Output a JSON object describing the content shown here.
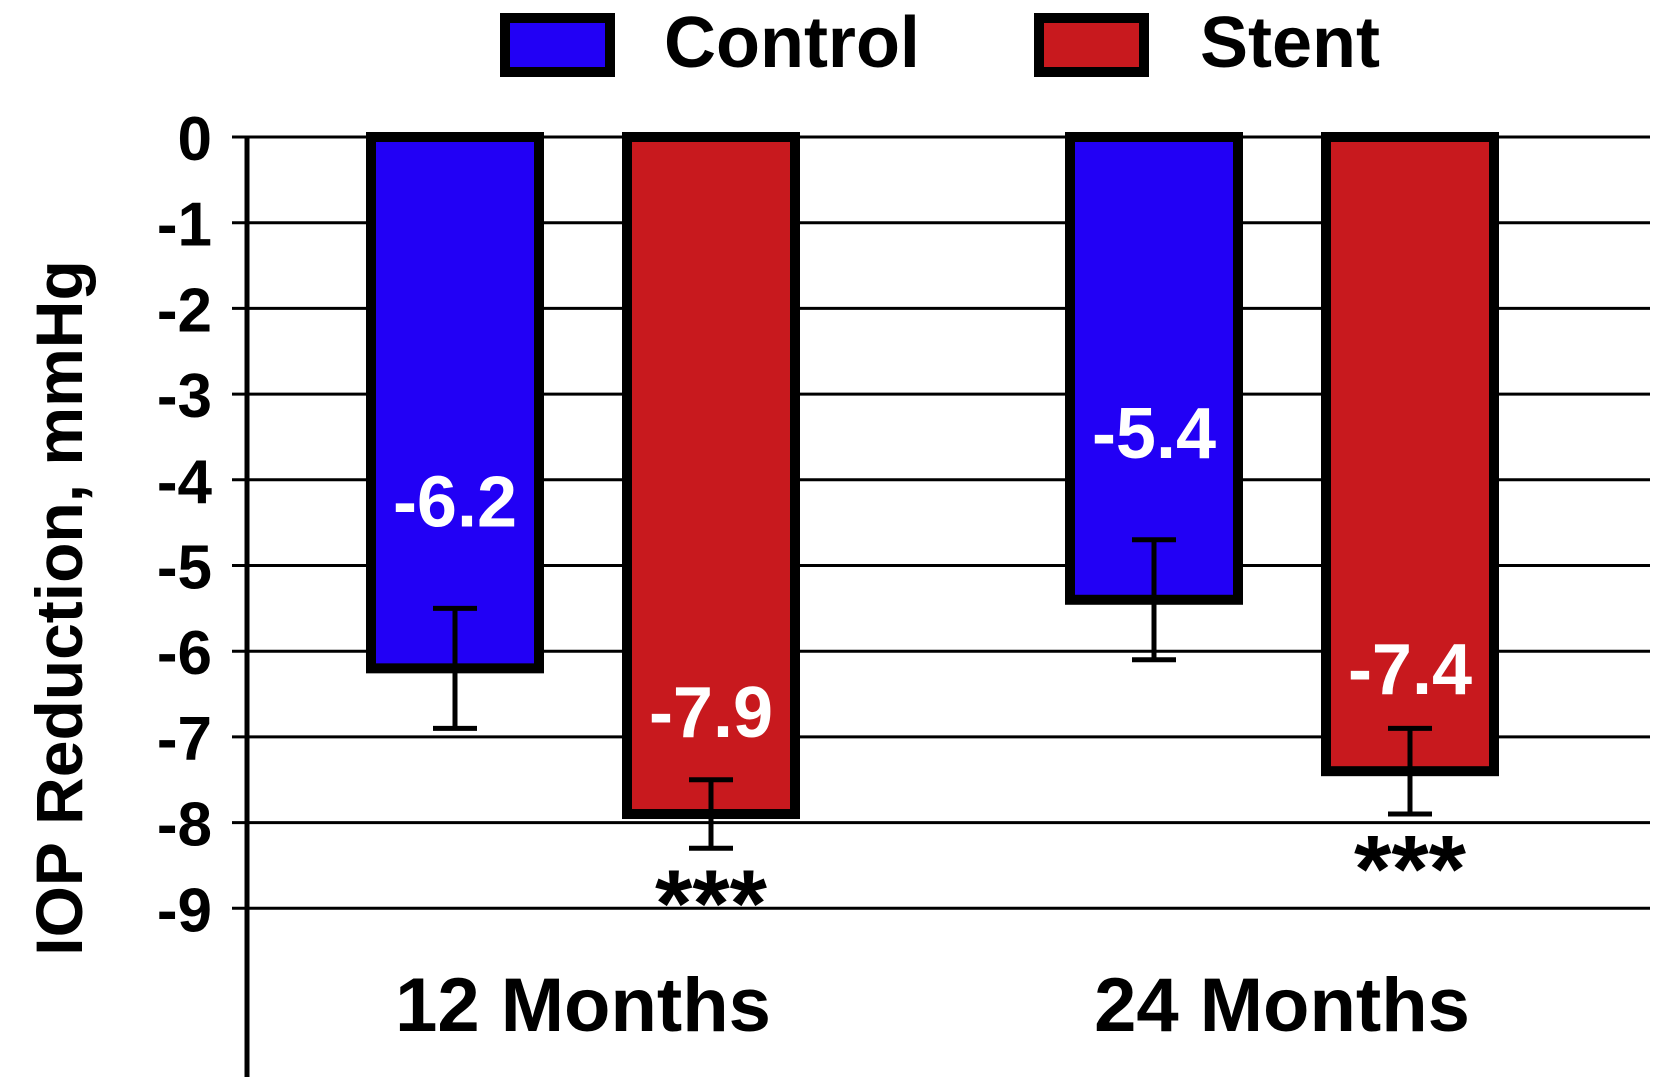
{
  "chart_data": {
    "type": "bar",
    "title": "",
    "xlabel": "",
    "ylabel": "IOP Reduction, mmHg",
    "ylim": [
      -9,
      0
    ],
    "yticks": [
      "0",
      "-1",
      "-2",
      "-3",
      "-4",
      "-5",
      "-6",
      "-7",
      "-8",
      "-9"
    ],
    "categories": [
      "12 Months",
      "24 Months"
    ],
    "series": [
      {
        "name": "Control",
        "color": "#2200f5",
        "values": [
          -6.2,
          -5.4
        ],
        "value_labels": [
          "-6.2",
          "-5.4"
        ],
        "error": [
          0.7,
          0.7
        ],
        "annotations": [
          "",
          ""
        ]
      },
      {
        "name": "Stent",
        "color": "#c8191e",
        "values": [
          -7.9,
          -7.4
        ],
        "value_labels": [
          "-7.9",
          "-7.4"
        ],
        "error": [
          0.4,
          0.5
        ],
        "annotations": [
          "***",
          "***"
        ]
      }
    ],
    "grid": true,
    "legend_position": "top"
  }
}
